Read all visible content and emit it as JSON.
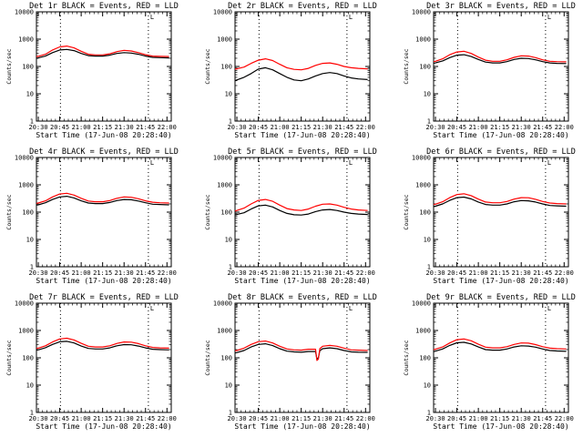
{
  "colors": {
    "events": "#000000",
    "lld": "#ff0000",
    "background": "#ffffff"
  },
  "xlabel": "Start Time (17-Jun-08 20:28:40)",
  "ylabel": "Counts/sec",
  "xticks": [
    "20:30",
    "20:45",
    "21:00",
    "21:15",
    "21:30",
    "21:45",
    "22:00"
  ],
  "xtick_minutes": [
    30,
    45,
    60,
    75,
    90,
    105,
    120
  ],
  "yticks": [
    "1",
    "10",
    "100",
    "1000",
    "10000"
  ],
  "yticks_values": [
    1,
    10,
    100,
    1000,
    10000
  ],
  "marker": "L",
  "chart_data": [
    {
      "type": "line",
      "title": "Det 1r BLACK = Events, RED = LLD",
      "x": [
        28.7,
        30,
        35,
        40,
        45,
        50,
        55,
        60,
        65,
        70,
        75,
        80,
        85,
        90,
        95,
        100,
        105,
        110,
        115,
        121.5
      ],
      "xlim": [
        28.7,
        123
      ],
      "ylim": [
        1,
        10000
      ],
      "yscale": "log",
      "vlines": [
        45.5,
        107
      ],
      "series": [
        {
          "color": "#000000",
          "values": [
            200,
            205,
            240,
            320,
            400,
            420,
            380,
            300,
            250,
            240,
            240,
            260,
            300,
            320,
            310,
            280,
            240,
            215,
            210,
            205
          ]
        },
        {
          "color": "#ff0000",
          "values": [
            230,
            235,
            280,
            400,
            520,
            560,
            480,
            360,
            280,
            265,
            265,
            290,
            350,
            390,
            370,
            320,
            270,
            240,
            235,
            230
          ]
        }
      ]
    },
    {
      "type": "line",
      "title": "Det 2r BLACK = Events, RED = LLD",
      "x": [
        28.7,
        30,
        35,
        40,
        45,
        50,
        55,
        60,
        65,
        70,
        75,
        80,
        85,
        90,
        95,
        100,
        105,
        110,
        115,
        121.5
      ],
      "xlim": [
        28.7,
        123
      ],
      "ylim": [
        1,
        10000
      ],
      "yscale": "log",
      "vlines": [
        45.5,
        107
      ],
      "series": [
        {
          "color": "#000000",
          "values": [
            30,
            32,
            40,
            55,
            80,
            90,
            75,
            55,
            40,
            32,
            30,
            35,
            45,
            55,
            60,
            55,
            45,
            38,
            35,
            33
          ]
        },
        {
          "color": "#ff0000",
          "values": [
            80,
            82,
            95,
            130,
            170,
            190,
            165,
            120,
            90,
            78,
            75,
            85,
            110,
            130,
            135,
            120,
            100,
            90,
            85,
            82
          ]
        }
      ]
    },
    {
      "type": "line",
      "title": "Det 3r BLACK = Events, RED = LLD",
      "x": [
        28.7,
        30,
        35,
        40,
        45,
        50,
        55,
        60,
        65,
        70,
        75,
        80,
        85,
        90,
        95,
        100,
        105,
        110,
        115,
        121.5
      ],
      "xlim": [
        28.7,
        123
      ],
      "ylim": [
        1,
        10000
      ],
      "yscale": "log",
      "vlines": [
        45.5,
        107
      ],
      "series": [
        {
          "color": "#000000",
          "values": [
            130,
            135,
            160,
            210,
            260,
            270,
            230,
            180,
            145,
            135,
            135,
            150,
            180,
            200,
            195,
            175,
            150,
            135,
            130,
            128
          ]
        },
        {
          "color": "#ff0000",
          "values": [
            150,
            155,
            190,
            270,
            340,
            360,
            300,
            220,
            170,
            155,
            155,
            175,
            215,
            245,
            240,
            210,
            175,
            155,
            150,
            148
          ]
        }
      ]
    },
    {
      "type": "line",
      "title": "Det 4r BLACK = Events, RED = LLD",
      "x": [
        28.7,
        30,
        35,
        40,
        45,
        50,
        55,
        60,
        65,
        70,
        75,
        80,
        85,
        90,
        95,
        100,
        105,
        110,
        115,
        121.5
      ],
      "xlim": [
        28.7,
        123
      ],
      "ylim": [
        1,
        10000
      ],
      "yscale": "log",
      "vlines": [
        45.5,
        107
      ],
      "series": [
        {
          "color": "#000000",
          "values": [
            180,
            185,
            220,
            290,
            360,
            380,
            330,
            260,
            215,
            205,
            205,
            225,
            265,
            290,
            285,
            255,
            220,
            195,
            190,
            185
          ]
        },
        {
          "color": "#ff0000",
          "values": [
            210,
            215,
            260,
            360,
            460,
            490,
            420,
            320,
            255,
            240,
            240,
            265,
            320,
            360,
            350,
            310,
            260,
            230,
            220,
            215
          ]
        }
      ]
    },
    {
      "type": "line",
      "title": "Det 5r BLACK = Events, RED = LLD",
      "x": [
        28.7,
        30,
        35,
        40,
        45,
        50,
        55,
        60,
        65,
        70,
        75,
        80,
        85,
        90,
        95,
        100,
        105,
        110,
        115,
        121.5
      ],
      "xlim": [
        28.7,
        123
      ],
      "ylim": [
        1,
        10000
      ],
      "yscale": "log",
      "vlines": [
        45.5,
        107
      ],
      "series": [
        {
          "color": "#000000",
          "values": [
            80,
            82,
            95,
            130,
            170,
            180,
            155,
            115,
            90,
            80,
            78,
            85,
            105,
            120,
            125,
            115,
            100,
            90,
            85,
            82
          ]
        },
        {
          "color": "#ff0000",
          "values": [
            110,
            115,
            140,
            200,
            270,
            290,
            250,
            180,
            135,
            120,
            115,
            130,
            165,
            195,
            200,
            180,
            150,
            130,
            120,
            115
          ]
        }
      ]
    },
    {
      "type": "line",
      "title": "Det 6r BLACK = Events, RED = LLD",
      "x": [
        28.7,
        30,
        35,
        40,
        45,
        50,
        55,
        60,
        65,
        70,
        75,
        80,
        85,
        90,
        95,
        100,
        105,
        110,
        115,
        121.5
      ],
      "xlim": [
        28.7,
        123
      ],
      "ylim": [
        1,
        10000
      ],
      "yscale": "log",
      "vlines": [
        45.5,
        107
      ],
      "series": [
        {
          "color": "#000000",
          "values": [
            160,
            165,
            200,
            270,
            340,
            355,
            305,
            235,
            190,
            180,
            180,
            200,
            240,
            265,
            260,
            235,
            200,
            175,
            170,
            165
          ]
        },
        {
          "color": "#ff0000",
          "values": [
            190,
            195,
            240,
            340,
            440,
            470,
            400,
            300,
            235,
            220,
            220,
            245,
            300,
            340,
            335,
            295,
            245,
            215,
            205,
            200
          ]
        }
      ]
    },
    {
      "type": "line",
      "title": "Det 7r BLACK = Events, RED = LLD",
      "x": [
        28.7,
        30,
        35,
        40,
        45,
        50,
        55,
        60,
        65,
        70,
        75,
        80,
        85,
        90,
        95,
        100,
        105,
        110,
        115,
        121.5
      ],
      "xlim": [
        28.7,
        123
      ],
      "ylim": [
        1,
        10000
      ],
      "yscale": "log",
      "vlines": [
        45.5,
        107
      ],
      "series": [
        {
          "color": "#000000",
          "values": [
            190,
            195,
            235,
            310,
            385,
            400,
            350,
            270,
            220,
            210,
            210,
            230,
            275,
            305,
            300,
            270,
            230,
            205,
            200,
            195
          ]
        },
        {
          "color": "#ff0000",
          "values": [
            220,
            225,
            275,
            380,
            490,
            520,
            450,
            340,
            265,
            250,
            250,
            275,
            335,
            380,
            375,
            330,
            275,
            240,
            230,
            225
          ]
        }
      ]
    },
    {
      "type": "line",
      "title": "Det 8r BLACK = Events, RED = LLD",
      "x": [
        28.7,
        30,
        35,
        40,
        45,
        50,
        55,
        60,
        65,
        70,
        75,
        80,
        85,
        86,
        87,
        88,
        90,
        95,
        100,
        105,
        110,
        115,
        121.5
      ],
      "xlim": [
        28.7,
        123
      ],
      "ylim": [
        1,
        10000
      ],
      "yscale": "log",
      "vlines": [
        45.5,
        107
      ],
      "series": [
        {
          "color": "#000000",
          "values": [
            150,
            155,
            185,
            250,
            310,
            325,
            280,
            215,
            175,
            165,
            160,
            170,
            170,
            90,
            100,
            180,
            215,
            230,
            215,
            185,
            165,
            160,
            158
          ]
        },
        {
          "color": "#ff0000",
          "values": [
            180,
            185,
            225,
            310,
            390,
            410,
            350,
            265,
            210,
            195,
            190,
            205,
            205,
            80,
            90,
            215,
            265,
            285,
            265,
            225,
            195,
            190,
            185
          ]
        }
      ]
    },
    {
      "type": "line",
      "title": "Det 9r BLACK = Events, RED = LLD",
      "x": [
        28.7,
        30,
        35,
        40,
        45,
        50,
        55,
        60,
        65,
        70,
        75,
        80,
        85,
        90,
        95,
        100,
        105,
        110,
        115,
        121.5
      ],
      "xlim": [
        28.7,
        123
      ],
      "ylim": [
        1,
        10000
      ],
      "yscale": "log",
      "vlines": [
        45.5,
        107
      ],
      "series": [
        {
          "color": "#000000",
          "values": [
            170,
            175,
            210,
            285,
            355,
            370,
            320,
            250,
            200,
            190,
            190,
            210,
            250,
            275,
            270,
            245,
            210,
            185,
            178,
            172
          ]
        },
        {
          "color": "#ff0000",
          "values": [
            200,
            205,
            250,
            350,
            460,
            490,
            420,
            315,
            245,
            230,
            230,
            255,
            310,
            350,
            345,
            305,
            255,
            225,
            215,
            210
          ]
        }
      ]
    }
  ]
}
